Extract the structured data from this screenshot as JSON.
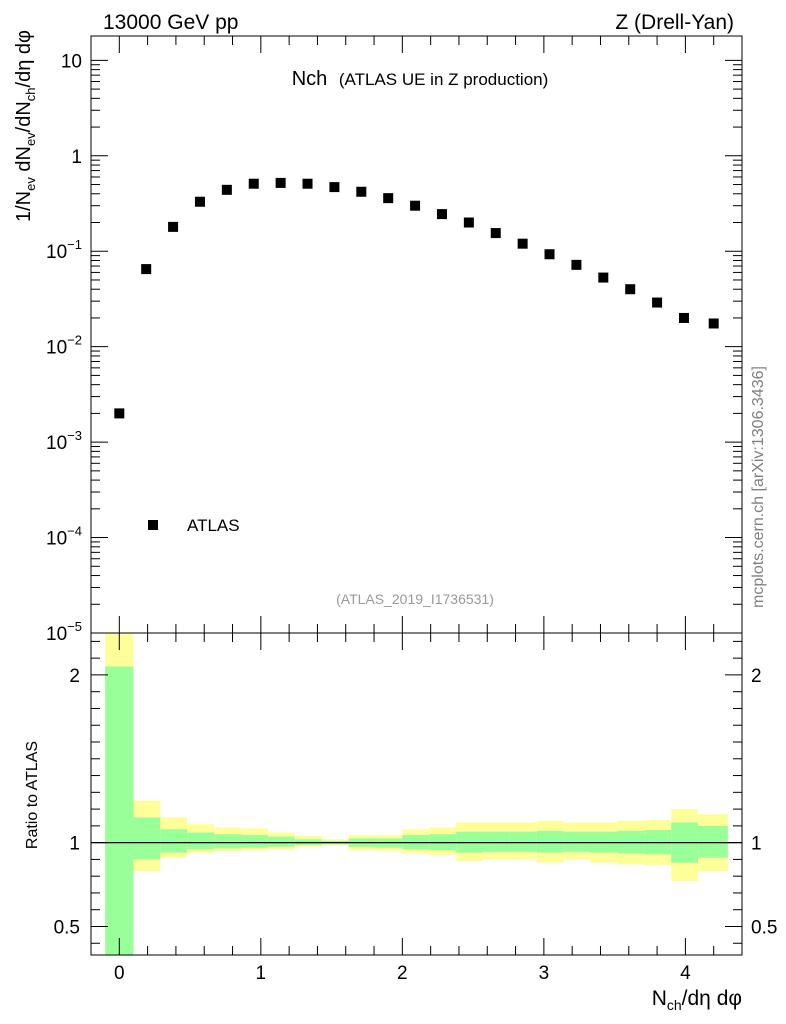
{
  "header": {
    "left": "13000 GeV pp",
    "right": "Z (Drell-Yan)"
  },
  "watermark": "mcplots.cern.ch [arXiv:1306.3436]",
  "analysis_id": "(ATLAS_2019_I1736531)",
  "colors": {
    "band_outer": "#ffff99",
    "band_inner": "#99ff99",
    "marker": "#000000",
    "analysis_text": "#999999",
    "watermark_text": "#808080"
  },
  "chart_data": [
    {
      "type": "scatter",
      "title": "Nch",
      "subtitle": "(ATLAS UE in Z production)",
      "ylabel_parts": [
        "1/N",
        "ev",
        " dN",
        "ev",
        "/dN",
        "ch",
        "/dη dφ"
      ],
      "yscale": "log",
      "ylim": [
        1e-05,
        18
      ],
      "xlim": [
        -0.2,
        4.4
      ],
      "y_ticks": [
        {
          "value": 10,
          "base": "10",
          "exp": ""
        },
        {
          "value": 1,
          "base": "1",
          "exp": ""
        },
        {
          "value": 0.1,
          "base": "10",
          "exp": "−1"
        },
        {
          "value": 0.01,
          "base": "10",
          "exp": "−2"
        },
        {
          "value": 0.001,
          "base": "10",
          "exp": "−3"
        },
        {
          "value": 0.0001,
          "base": "10",
          "exp": "−4"
        },
        {
          "value": 1e-05,
          "base": "10",
          "exp": "−5"
        }
      ],
      "legend": {
        "position": "bottom-left",
        "entries": [
          "ATLAS"
        ]
      },
      "series": [
        {
          "name": "ATLAS",
          "x": [
            0.0,
            0.19,
            0.38,
            0.57,
            0.76,
            0.95,
            1.14,
            1.33,
            1.52,
            1.71,
            1.9,
            2.09,
            2.28,
            2.47,
            2.66,
            2.85,
            3.04,
            3.23,
            3.42,
            3.61,
            3.8,
            3.99,
            4.2
          ],
          "y": [
            0.002,
            0.065,
            0.18,
            0.33,
            0.44,
            0.51,
            0.52,
            0.51,
            0.47,
            0.42,
            0.36,
            0.3,
            0.245,
            0.2,
            0.155,
            0.12,
            0.093,
            0.072,
            0.053,
            0.04,
            0.029,
            0.02,
            0.0175
          ]
        }
      ]
    },
    {
      "type": "area",
      "ylabel": "Ratio to ATLAS",
      "xlabel_parts": [
        "N",
        "ch",
        "/dη dφ"
      ],
      "xlim": [
        -0.2,
        4.4
      ],
      "ylim": [
        0.33,
        2.25
      ],
      "x_ticks": [
        0,
        1,
        2,
        3,
        4
      ],
      "y_ticks": [
        0.5,
        1,
        2
      ],
      "reference_line": 1,
      "bins": {
        "edges": [
          -0.1,
          0.1,
          0.29,
          0.48,
          0.67,
          0.86,
          1.05,
          1.24,
          1.43,
          1.62,
          1.81,
          2.0,
          2.19,
          2.38,
          2.57,
          2.76,
          2.95,
          3.14,
          3.33,
          3.52,
          3.71,
          3.9,
          4.09,
          4.3
        ],
        "outer_low": [
          0.33,
          0.83,
          0.91,
          0.94,
          0.95,
          0.955,
          0.96,
          0.975,
          0.985,
          0.955,
          0.95,
          0.935,
          0.925,
          0.89,
          0.9,
          0.9,
          0.88,
          0.9,
          0.88,
          0.87,
          0.865,
          0.77,
          0.83
        ],
        "outer_high": [
          2.25,
          1.25,
          1.15,
          1.11,
          1.09,
          1.085,
          1.06,
          1.04,
          1.02,
          1.045,
          1.045,
          1.08,
          1.09,
          1.12,
          1.12,
          1.12,
          1.13,
          1.12,
          1.12,
          1.13,
          1.135,
          1.2,
          1.17
        ],
        "inner_low": [
          0.33,
          0.9,
          0.94,
          0.96,
          0.965,
          0.97,
          0.975,
          0.985,
          0.99,
          0.975,
          0.97,
          0.96,
          0.955,
          0.94,
          0.945,
          0.945,
          0.94,
          0.945,
          0.94,
          0.935,
          0.93,
          0.88,
          0.91
        ],
        "inner_high": [
          2.05,
          1.15,
          1.08,
          1.06,
          1.05,
          1.045,
          1.035,
          1.02,
          1.01,
          1.025,
          1.025,
          1.045,
          1.05,
          1.065,
          1.065,
          1.065,
          1.07,
          1.065,
          1.065,
          1.07,
          1.075,
          1.12,
          1.1
        ]
      }
    }
  ]
}
